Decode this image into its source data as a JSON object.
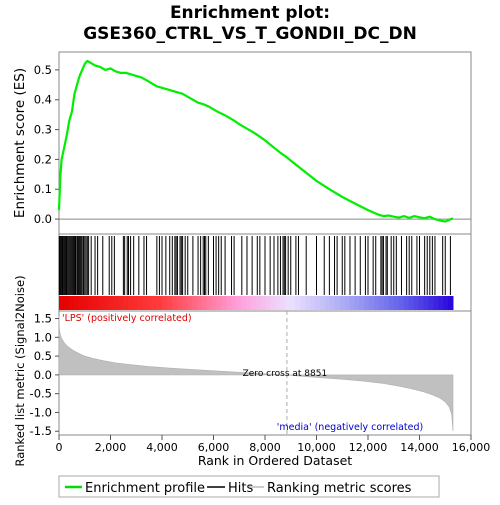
{
  "chart_data": {
    "type": "line",
    "title_line1": "Enrichment plot:",
    "title_line2": "GSE360_CTRL_VS_T_GONDII_DC_DN",
    "es_panel": {
      "ylabel": "Enrichment score (ES)",
      "ylim": [
        -0.05,
        0.56
      ],
      "yticks": [
        "0.0",
        "0.1",
        "0.2",
        "0.3",
        "0.4",
        "0.5"
      ],
      "ytick_values": [
        0.0,
        0.1,
        0.2,
        0.3,
        0.4,
        0.5
      ],
      "x": [
        0,
        50,
        100,
        200,
        300,
        400,
        500,
        600,
        700,
        800,
        900,
        1000,
        1100,
        1200,
        1400,
        1600,
        1800,
        2000,
        2200,
        2400,
        2600,
        2800,
        3000,
        3200,
        3400,
        3600,
        3800,
        4000,
        4200,
        4400,
        4600,
        4800,
        5000,
        5200,
        5400,
        5600,
        5800,
        6000,
        6200,
        6400,
        6600,
        6800,
        7000,
        7200,
        7400,
        7600,
        7800,
        8000,
        8200,
        8400,
        8600,
        8800,
        9000,
        9500,
        10000,
        10500,
        11000,
        11500,
        12000,
        12400,
        12600,
        12800,
        13000,
        13200,
        13400,
        13600,
        13800,
        14000,
        14200,
        14400,
        14600,
        14800,
        15000,
        15300
      ],
      "y": [
        0.03,
        0.14,
        0.2,
        0.24,
        0.28,
        0.33,
        0.36,
        0.42,
        0.45,
        0.48,
        0.5,
        0.52,
        0.53,
        0.525,
        0.515,
        0.51,
        0.5,
        0.505,
        0.495,
        0.49,
        0.49,
        0.485,
        0.48,
        0.475,
        0.465,
        0.455,
        0.445,
        0.44,
        0.435,
        0.43,
        0.425,
        0.42,
        0.41,
        0.4,
        0.39,
        0.385,
        0.378,
        0.368,
        0.358,
        0.35,
        0.34,
        0.33,
        0.318,
        0.308,
        0.298,
        0.288,
        0.276,
        0.264,
        0.25,
        0.236,
        0.222,
        0.21,
        0.196,
        0.162,
        0.128,
        0.1,
        0.074,
        0.052,
        0.03,
        0.015,
        0.01,
        0.012,
        0.008,
        0.005,
        0.01,
        0.004,
        0.01,
        0.006,
        0.003,
        0.008,
        0.0,
        -0.005,
        -0.008,
        0.003
      ]
    },
    "ranking_panel": {
      "ylabel": "Ranked list metric (Signal2Noise)",
      "xlabel": "Rank in Ordered Dataset",
      "ylim": [
        -1.6,
        1.7
      ],
      "yticks": [
        "-1.5",
        "-1.0",
        "-0.5",
        "0.0",
        "0.5",
        "1.0",
        "1.5"
      ],
      "ytick_values": [
        -1.5,
        -1.0,
        -0.5,
        0.0,
        0.5,
        1.0,
        1.5
      ],
      "xlim": [
        0,
        16000
      ],
      "xticks": [
        "0",
        "2,000",
        "4,000",
        "6,000",
        "8,000",
        "10,000",
        "12,000",
        "14,000",
        "16,000"
      ],
      "xtick_values": [
        0,
        2000,
        4000,
        6000,
        8000,
        10000,
        12000,
        14000,
        16000
      ],
      "total_rank": 15300,
      "zero_cross": 8851,
      "zero_cross_label": "Zero cross at 8851",
      "pos_label": "'LPS' (positively correlated)",
      "neg_label": "'media' (negatively correlated)",
      "metric_x": [
        0,
        20,
        60,
        120,
        200,
        300,
        450,
        600,
        800,
        1000,
        1300,
        1700,
        2200,
        2800,
        3500,
        4300,
        5200,
        6200,
        7200,
        8200,
        8851,
        9500,
        10300,
        11100,
        11900,
        12600,
        13200,
        13700,
        14100,
        14500,
        14800,
        15000,
        15150,
        15250,
        15300
      ],
      "metric_y": [
        1.55,
        1.2,
        1.05,
        0.95,
        0.86,
        0.78,
        0.7,
        0.63,
        0.56,
        0.5,
        0.44,
        0.38,
        0.32,
        0.27,
        0.22,
        0.18,
        0.14,
        0.1,
        0.06,
        0.02,
        0.0,
        -0.04,
        -0.08,
        -0.12,
        -0.17,
        -0.23,
        -0.3,
        -0.37,
        -0.44,
        -0.53,
        -0.62,
        -0.72,
        -0.85,
        -1.05,
        -1.5
      ]
    },
    "hits": [
      10,
      40,
      80,
      120,
      150,
      190,
      230,
      270,
      300,
      340,
      380,
      420,
      460,
      500,
      540,
      580,
      620,
      650,
      700,
      740,
      780,
      820,
      860,
      900,
      950,
      1000,
      1050,
      1100,
      1150,
      1250,
      1400,
      1500,
      1700,
      1950,
      2050,
      2150,
      2500,
      2550,
      2650,
      2700,
      2780,
      2900,
      3100,
      3300,
      3400,
      3800,
      3900,
      4000,
      4150,
      4300,
      4400,
      4500,
      4550,
      4600,
      4700,
      4750,
      4800,
      4900,
      5000,
      5200,
      5400,
      5500,
      5600,
      5650,
      5700,
      5800,
      6000,
      6100,
      6200,
      6300,
      6450,
      6700,
      6800,
      7100,
      7300,
      7500,
      7700,
      7800,
      8000,
      8200,
      8350,
      8500,
      8600,
      8700,
      8750,
      8800,
      8900,
      9000,
      9200,
      9300,
      9600,
      10000,
      10300,
      10500,
      10700,
      10800,
      11000,
      11100,
      11300,
      11500,
      11700,
      11900,
      12000,
      12200,
      12300,
      12500,
      12550,
      12600,
      12700,
      12750,
      12900,
      13000,
      13100,
      13300,
      13500,
      13600,
      13700,
      13900,
      14000,
      14200,
      14300,
      14400,
      14500,
      14600,
      14900,
      15000,
      15200
    ],
    "legend": {
      "placement": "bottom",
      "items": [
        {
          "label": "Enrichment profile",
          "color": "#00dd00"
        },
        {
          "label": "Hits",
          "color": "#000000"
        },
        {
          "label": "Ranking metric scores",
          "color": "#bbbbbb"
        }
      ]
    },
    "colors": {
      "es_line": "#00ee00",
      "metric_fill": "#c0c0c0",
      "pos_label": "#dd0000",
      "neg_label": "#0000cc",
      "zero_line": "#aaaaaa"
    }
  }
}
